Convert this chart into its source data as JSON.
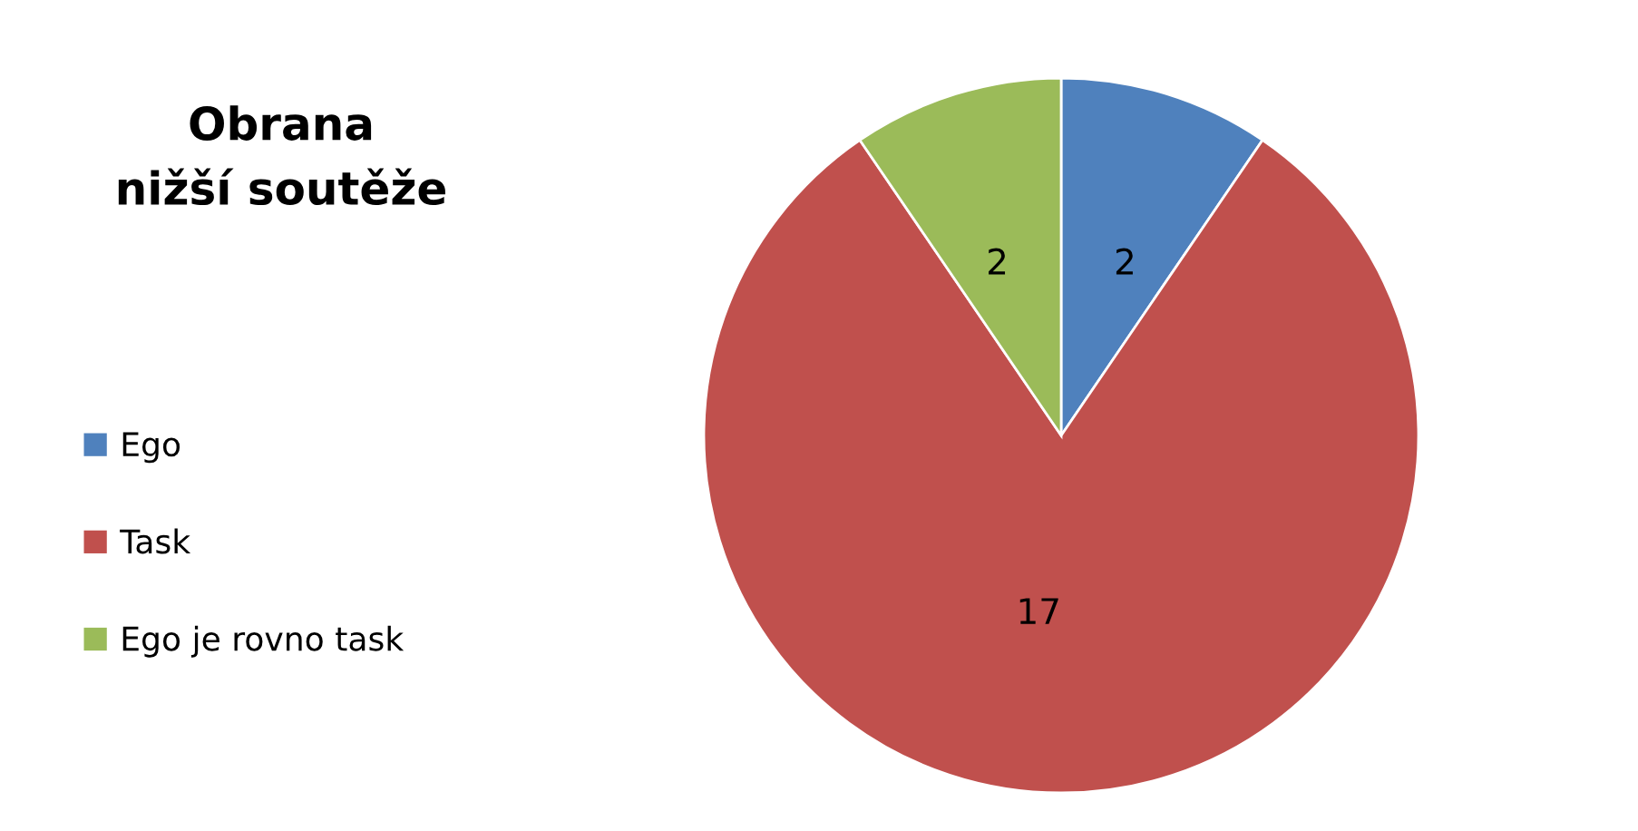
{
  "chart_data": {
    "type": "pie",
    "title": "Obrana\nnižší soutěže",
    "categories": [
      "Ego",
      "Task",
      "Ego je rovno task"
    ],
    "values": [
      2,
      17,
      2
    ],
    "colors": [
      "#4f81bd",
      "#c0504d",
      "#9bbb59"
    ],
    "data_labels": true,
    "legend": "left"
  }
}
